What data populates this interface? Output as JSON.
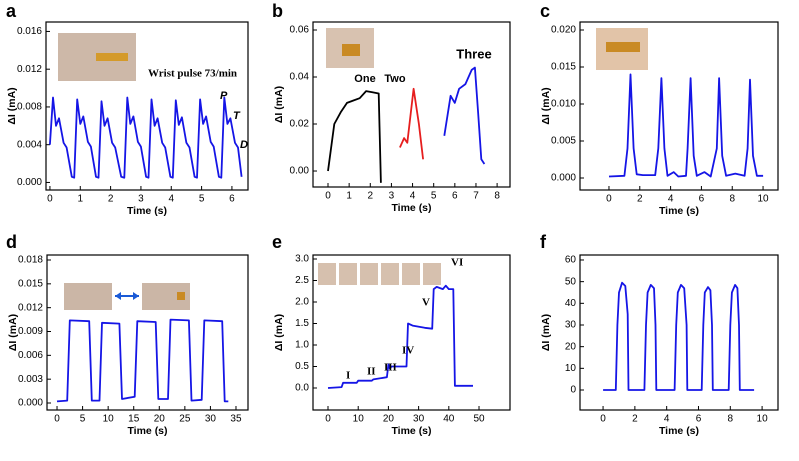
{
  "chart_data": [
    {
      "type": "line",
      "label": "a",
      "xlabel": "Time (s)",
      "ylabel": "ΔI (mA)",
      "color": "#1515e6",
      "annotations": [
        "Wrist pulse 73/min",
        "P",
        "T",
        "D"
      ],
      "xlim": [
        -0.13,
        6.53
      ],
      "xticks": [
        0,
        1,
        2,
        3,
        4,
        5,
        6
      ],
      "ylim": [
        -0.0008,
        0.017
      ],
      "yticks": [
        {
          "value": 0,
          "label": "0.000"
        },
        {
          "value": 0.004,
          "label": "0.004"
        },
        {
          "value": 0.008,
          "label": "0.008"
        },
        {
          "value": 0.012,
          "label": "0.012"
        },
        {
          "value": 0.016,
          "label": "0.016"
        }
      ],
      "x": [
        0,
        0.1,
        0.2,
        0.3,
        0.45,
        0.55,
        0.72,
        0.8,
        0.9,
        1.0,
        1.1,
        1.25,
        1.35,
        1.52,
        1.6,
        1.7,
        1.8,
        1.9,
        2.05,
        2.15,
        2.35,
        2.45,
        2.55,
        2.65,
        2.75,
        2.9,
        3.0,
        3.17,
        3.25,
        3.35,
        3.45,
        3.55,
        3.7,
        3.8,
        3.97,
        4.05,
        4.15,
        4.25,
        4.35,
        4.5,
        4.6,
        4.77,
        4.85,
        4.95,
        5.05,
        5.15,
        5.3,
        5.4,
        5.57,
        5.65,
        5.75,
        5.85,
        5.95,
        6.1,
        6.2,
        6.32
      ],
      "values": [
        0.004,
        0.009,
        0.006,
        0.0068,
        0.0042,
        0.0037,
        0.0006,
        0.0005,
        0.0088,
        0.0062,
        0.007,
        0.0043,
        0.0038,
        0.0006,
        0.0005,
        0.0086,
        0.006,
        0.0068,
        0.0042,
        0.0037,
        0.0006,
        0.0005,
        0.009,
        0.0062,
        0.007,
        0.0043,
        0.0038,
        0.0006,
        0.0005,
        0.0088,
        0.006,
        0.0068,
        0.0042,
        0.0037,
        0.0006,
        0.0005,
        0.0087,
        0.0061,
        0.0069,
        0.0042,
        0.0037,
        0.0006,
        0.0005,
        0.0088,
        0.0062,
        0.007,
        0.0043,
        0.0038,
        0.0006,
        0.0005,
        0.009,
        0.0062,
        0.0068,
        0.0042,
        0.0037,
        0.0006
      ]
    },
    {
      "type": "line",
      "label": "b",
      "xlabel": "Time (s)",
      "ylabel": "ΔI (mA)",
      "xlim": [
        -0.71,
        8.61
      ],
      "xticks": [
        0,
        1,
        2,
        3,
        4,
        5,
        6,
        7,
        8
      ],
      "ylim": [
        -0.0068,
        0.0634
      ],
      "yticks": [
        {
          "value": 0,
          "label": "0.00"
        },
        {
          "value": 0.02,
          "label": "0.02"
        },
        {
          "value": 0.04,
          "label": "0.04"
        },
        {
          "value": 0.06,
          "label": "0.06"
        }
      ],
      "series": [
        {
          "name": "One",
          "color": "#000000",
          "x": [
            0,
            0.3,
            0.6,
            0.9,
            1.2,
            1.5,
            1.8,
            2.1,
            2.4,
            2.5
          ],
          "values": [
            0,
            0.02,
            0.025,
            0.029,
            0.03,
            0.031,
            0.034,
            0.0335,
            0.033,
            -0.005
          ]
        },
        {
          "name": "Two",
          "color": "#e61e1e",
          "x": [
            3.4,
            3.6,
            3.75,
            4.05,
            4.3,
            4.5
          ],
          "values": [
            0.01,
            0.014,
            0.012,
            0.035,
            0.02,
            0.005
          ]
        },
        {
          "name": "Three",
          "color": "#1515e6",
          "x": [
            5.5,
            5.8,
            6.0,
            6.2,
            6.5,
            6.8,
            6.95,
            7.1,
            7.25,
            7.4
          ],
          "values": [
            0.015,
            0.032,
            0.029,
            0.035,
            0.037,
            0.043,
            0.044,
            0.025,
            0.005,
            0.003
          ]
        }
      ]
    },
    {
      "type": "line",
      "label": "c",
      "xlabel": "Time (s)",
      "ylabel": "ΔI (mA)",
      "color": "#1515e6",
      "xlim": [
        -1.88,
        10.97
      ],
      "xticks": [
        0,
        2,
        4,
        6,
        8,
        10
      ],
      "ylim": [
        -0.00162,
        0.02108
      ],
      "yticks": [
        {
          "value": 0,
          "label": "0.000"
        },
        {
          "value": 0.005,
          "label": "0.005"
        },
        {
          "value": 0.01,
          "label": "0.010"
        },
        {
          "value": 0.015,
          "label": "0.015"
        },
        {
          "value": 0.02,
          "label": "0.020"
        }
      ],
      "x": [
        0,
        1.0,
        1.2,
        1.4,
        1.6,
        1.8,
        2.2,
        3.0,
        3.2,
        3.4,
        3.6,
        3.8,
        4.2,
        4.5,
        5.0,
        5.1,
        5.3,
        5.5,
        5.7,
        6.2,
        6.6,
        7.0,
        7.15,
        7.35,
        7.6,
        8.2,
        8.8,
        9.0,
        9.15,
        9.35,
        9.6,
        10
      ],
      "values": [
        0.0002,
        0.0003,
        0.004,
        0.014,
        0.004,
        0.0005,
        0.0004,
        0.0004,
        0.004,
        0.0135,
        0.004,
        0.0003,
        0.0008,
        0.0002,
        0.0003,
        0.004,
        0.0135,
        0.003,
        0.0003,
        0.0008,
        0.0002,
        0.004,
        0.0135,
        0.003,
        0.0003,
        0.0006,
        0.0003,
        0.004,
        0.0133,
        0.003,
        0.0003,
        0.0003
      ]
    },
    {
      "type": "line",
      "label": "d",
      "xlabel": "Time (s)",
      "ylabel": "ΔI (mA)",
      "color": "#1515e6",
      "xlim": [
        -1.96,
        37.35
      ],
      "xticks": [
        0,
        5,
        10,
        15,
        20,
        25,
        30,
        35
      ],
      "ylim": [
        -0.00088,
        0.01863
      ],
      "yticks": [
        {
          "value": 0,
          "label": "0.000"
        },
        {
          "value": 0.003,
          "label": "0.003"
        },
        {
          "value": 0.006,
          "label": "0.006"
        },
        {
          "value": 0.009,
          "label": "0.009"
        },
        {
          "value": 0.012,
          "label": "0.012"
        },
        {
          "value": 0.015,
          "label": "0.015"
        },
        {
          "value": 0.018,
          "label": "0.018"
        }
      ],
      "x": [
        0,
        2,
        2.5,
        6.3,
        6.8,
        8.3,
        8.8,
        12.2,
        12.7,
        15.2,
        15.7,
        19.3,
        19.8,
        21.7,
        22.2,
        25.8,
        26.3,
        28.3,
        28.8,
        32.3,
        32.8,
        33.5
      ],
      "values": [
        0.0002,
        0.0003,
        0.0104,
        0.0103,
        0.0003,
        0.0003,
        0.0101,
        0.01,
        0.0005,
        0.0008,
        0.0103,
        0.0102,
        0.0005,
        0.0005,
        0.0105,
        0.0104,
        0.0003,
        0.0004,
        0.0104,
        0.0103,
        0.0002,
        0.0002
      ]
    },
    {
      "type": "line",
      "label": "e",
      "xlabel": "Time (s)",
      "ylabel": "ΔI (mA)",
      "color": "#1515e6",
      "annotations": [
        "I",
        "II",
        "III",
        "IV",
        "V",
        "VI"
      ],
      "xlim": [
        -4.97,
        60.26
      ],
      "xticks": [
        0,
        10,
        20,
        30,
        40,
        50
      ],
      "ylim": [
        -0.512,
        3.093
      ],
      "yticks": [
        {
          "value": 0,
          "label": "0.0"
        },
        0.5,
        {
          "value": 1,
          "label": "1.0"
        },
        1.5,
        {
          "value": 2,
          "label": "2.0"
        },
        2.5,
        {
          "value": 3,
          "label": "3.0"
        }
      ],
      "x": [
        0,
        4.5,
        5,
        9.5,
        10,
        14.5,
        15,
        19.5,
        20,
        20.5,
        21,
        25.5,
        26,
        26.5,
        28,
        32,
        34.5,
        35,
        36,
        38,
        39,
        40,
        41.5,
        42,
        48
      ],
      "values": [
        0,
        0.02,
        0.12,
        0.12,
        0.17,
        0.17,
        0.2,
        0.25,
        0.55,
        0.45,
        0.5,
        0.5,
        0.5,
        1.5,
        1.45,
        1.4,
        1.38,
        2.3,
        2.35,
        2.3,
        2.38,
        2.3,
        2.3,
        0.05,
        0.05
      ]
    },
    {
      "type": "line",
      "label": "f",
      "xlabel": "Time (s)",
      "ylabel": "ΔI (mA)",
      "color": "#1515e6",
      "xlim": [
        -1.45,
        11.0
      ],
      "xticks": [
        0,
        2,
        4,
        6,
        8,
        10
      ],
      "ylim": [
        -9.23,
        62.3
      ],
      "yticks": [
        0,
        10,
        20,
        30,
        40,
        50,
        60
      ],
      "x": [
        0,
        0.8,
        0.9,
        1.0,
        1.2,
        1.4,
        1.55,
        1.6,
        2.6,
        2.7,
        2.8,
        3.0,
        3.2,
        3.3,
        3.35,
        4.5,
        4.6,
        4.7,
        4.9,
        5.1,
        5.25,
        5.3,
        6.2,
        6.3,
        6.4,
        6.6,
        6.75,
        6.85,
        6.9,
        7.9,
        8.0,
        8.1,
        8.3,
        8.45,
        8.55,
        8.6,
        9.5
      ],
      "values": [
        0,
        0,
        30,
        45,
        49.5,
        48,
        35,
        0,
        0,
        30,
        45,
        48.5,
        47,
        30,
        0,
        0,
        30,
        45,
        48.5,
        47,
        30,
        0,
        0,
        30,
        45,
        47.5,
        46,
        30,
        0,
        0,
        30,
        45,
        48.5,
        47,
        30,
        0,
        0
      ]
    }
  ]
}
